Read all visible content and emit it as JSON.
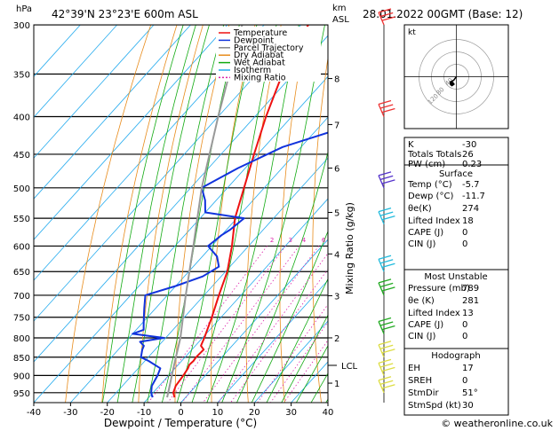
{
  "header": {
    "location": "42°39'N  23°23'E  600m  ASL",
    "datetime": "28.01.2022  00GMT  (Base: 12)",
    "p_unit": "hPa",
    "km_unit_1": "km",
    "km_unit_2": "ASL",
    "hodo_label": "kt"
  },
  "chart_data": {
    "type": "skew-t",
    "xlabel": "Dewpoint / Temperature (°C)",
    "ylabel_left": "hPa",
    "ylabel_right": "Mixing Ratio (g/kg)",
    "xlim": [
      -40,
      40
    ],
    "ylim": [
      980,
      300
    ],
    "x_ticks": [
      "-40",
      "-30",
      "-20",
      "-10",
      "0",
      "10",
      "20",
      "30",
      "40"
    ],
    "pressure_levels": [
      300,
      350,
      400,
      450,
      500,
      550,
      600,
      650,
      700,
      750,
      800,
      850,
      900,
      950
    ],
    "km_ticks": [
      {
        "km": "1",
        "p": 922
      },
      {
        "km": "2",
        "p": 800
      },
      {
        "km": "3",
        "p": 701
      },
      {
        "km": "4",
        "p": 615
      },
      {
        "km": "5",
        "p": 540
      },
      {
        "km": "6",
        "p": 470
      },
      {
        "km": "7",
        "p": 410
      },
      {
        "km": "8",
        "p": 355
      }
    ],
    "lcl": {
      "label": "LCL",
      "p": 872
    },
    "mixing_ratio_labels": [
      "2",
      "3",
      "4",
      "6",
      "8",
      "10",
      "16",
      "20",
      "25"
    ],
    "mixing_ratio_label_p": 588,
    "legend": [
      {
        "name": "Temperature",
        "color": "#ee1111"
      },
      {
        "name": "Dewpoint",
        "color": "#1133dd"
      },
      {
        "name": "Parcel Trajectory",
        "color": "#888888"
      },
      {
        "name": "Dry Adiabat",
        "color": "#e88c1c"
      },
      {
        "name": "Wet Adiabat",
        "color": "#11aa11"
      },
      {
        "name": "Isotherm",
        "color": "#22aaee"
      },
      {
        "name": "Mixing Ratio",
        "color": "#dd22aa"
      }
    ],
    "series": [
      {
        "name": "Temperature",
        "p": [
          964,
          950,
          930,
          900,
          880,
          870,
          860,
          850,
          830,
          820,
          800,
          750,
          700,
          650,
          600,
          550,
          500,
          450,
          400,
          350,
          300
        ],
        "t": [
          -3,
          -4.5,
          -5.5,
          -6,
          -6.5,
          -7,
          -6.8,
          -7,
          -6.8,
          -8.5,
          -9.5,
          -12.5,
          -16,
          -19.5,
          -24.5,
          -30.5,
          -35.5,
          -41,
          -47,
          -53,
          -58
        ]
      },
      {
        "name": "Dewpoint",
        "p": [
          964,
          950,
          930,
          900,
          880,
          860,
          850,
          830,
          820,
          810,
          800,
          790,
          780,
          760,
          730,
          700,
          680,
          660,
          640,
          620,
          600,
          580,
          570,
          550,
          540,
          520,
          500,
          470,
          440,
          420,
          400,
          380,
          360,
          330,
          300
        ],
        "t": [
          -9,
          -10.5,
          -12,
          -13,
          -14,
          -19,
          -22,
          -23.5,
          -24,
          -26,
          -20.5,
          -30,
          -28,
          -30,
          -33,
          -36,
          -30,
          -25,
          -23,
          -26,
          -31,
          -30,
          -29,
          -28,
          -40,
          -43,
          -47,
          -42,
          -35,
          -26,
          -17,
          -33,
          -37,
          -32,
          -38
        ]
      },
      {
        "name": "Parcel Trajectory",
        "p": [
          964,
          872,
          800,
          700,
          600,
          500,
          400,
          300
        ],
        "t": [
          -5,
          -11,
          -16,
          -25,
          -35,
          -47,
          -60,
          -76
        ]
      }
    ],
    "wind_barbs": [
      {
        "p": 300,
        "color": "#ee3333"
      },
      {
        "p": 400,
        "color": "#ee3333"
      },
      {
        "p": 500,
        "color": "#5533cc"
      },
      {
        "p": 560,
        "color": "#22bbdd"
      },
      {
        "p": 650,
        "color": "#22bbdd"
      },
      {
        "p": 700,
        "color": "#22aa22"
      },
      {
        "p": 790,
        "color": "#22aa22"
      },
      {
        "p": 850,
        "color": "#dddd44"
      },
      {
        "p": 900,
        "color": "#dddd44"
      },
      {
        "p": 950,
        "color": "#dddd44"
      }
    ]
  },
  "stats": {
    "k": {
      "label": "K",
      "value": "-30"
    },
    "totals": {
      "label": "Totals Totals",
      "value": "26"
    },
    "pw": {
      "label": "PW (cm)",
      "value": "0.23"
    },
    "surface": {
      "title": "Surface",
      "temp": {
        "label": "Temp (°C)",
        "value": "-5.7"
      },
      "dewp": {
        "label": "Dewp (°C)",
        "value": "-11.7"
      },
      "theta": {
        "label": "θe(K)",
        "value": "274"
      },
      "li": {
        "label": "Lifted Index",
        "value": "18"
      },
      "cape": {
        "label": "CAPE (J)",
        "value": "0"
      },
      "cin": {
        "label": "CIN (J)",
        "value": "0"
      }
    },
    "unstable": {
      "title": "Most Unstable",
      "pressure": {
        "label": "Pressure (mb)",
        "value": "789"
      },
      "theta": {
        "label": "θe (K)",
        "value": "281"
      },
      "li": {
        "label": "Lifted Index",
        "value": "13"
      },
      "cape": {
        "label": "CAPE (J)",
        "value": "0"
      },
      "cin": {
        "label": "CIN (J)",
        "value": "0"
      }
    },
    "hodograph": {
      "title": "Hodograph",
      "eh": {
        "label": "EH",
        "value": "17"
      },
      "sreh": {
        "label": "SREH",
        "value": "0"
      },
      "stmdir": {
        "label": "StmDir",
        "value": "51°"
      },
      "stmspd": {
        "label": "StmSpd (kt)",
        "value": "30"
      }
    }
  },
  "hodo_rings": [
    "40",
    "80",
    "120"
  ],
  "footer": {
    "copyright": "© weatheronline.co.uk"
  }
}
